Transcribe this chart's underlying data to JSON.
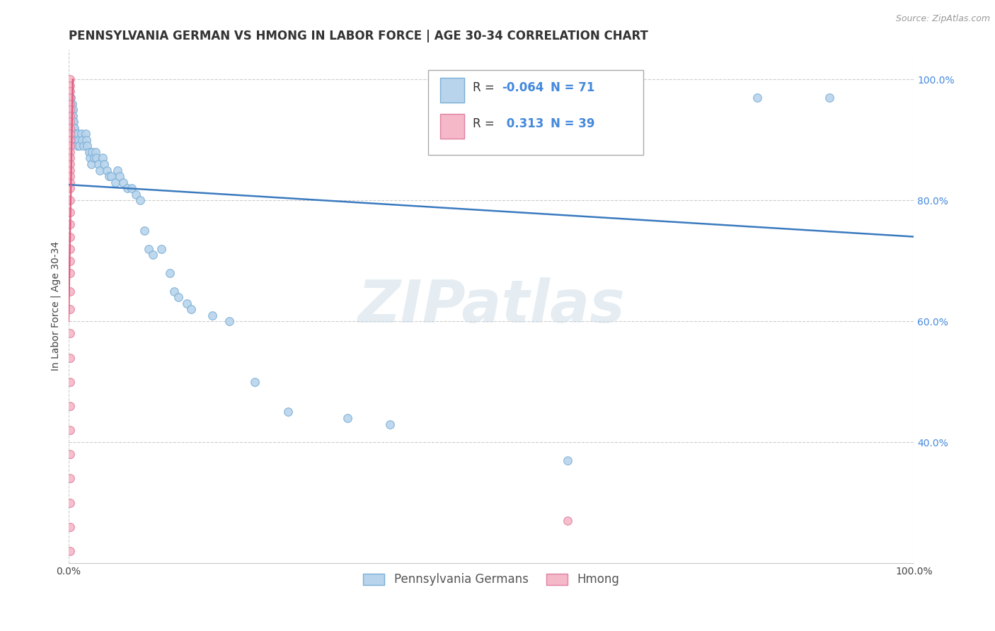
{
  "title": "PENNSYLVANIA GERMAN VS HMONG IN LABOR FORCE | AGE 30-34 CORRELATION CHART",
  "source": "Source: ZipAtlas.com",
  "ylabel": "In Labor Force | Age 30-34",
  "xlim": [
    0.0,
    1.0
  ],
  "ylim": [
    0.2,
    1.05
  ],
  "r_blue": -0.064,
  "n_blue": 71,
  "r_pink": 0.313,
  "n_pink": 39,
  "blue_color": "#b8d4ed",
  "blue_edge": "#7aaed4",
  "pink_color": "#f5b8c8",
  "pink_edge": "#e080a0",
  "line_color": "#3a7abf",
  "pink_line_color": "#e06080",
  "watermark": "ZIPatlas",
  "blue_scatter": [
    [
      0.001,
      0.97
    ],
    [
      0.001,
      0.96
    ],
    [
      0.002,
      0.97
    ],
    [
      0.002,
      0.96
    ],
    [
      0.002,
      0.95
    ],
    [
      0.003,
      0.97
    ],
    [
      0.003,
      0.96
    ],
    [
      0.003,
      0.95
    ],
    [
      0.003,
      0.94
    ],
    [
      0.004,
      0.96
    ],
    [
      0.004,
      0.95
    ],
    [
      0.004,
      0.94
    ],
    [
      0.004,
      0.93
    ],
    [
      0.005,
      0.95
    ],
    [
      0.005,
      0.94
    ],
    [
      0.005,
      0.93
    ],
    [
      0.006,
      0.93
    ],
    [
      0.006,
      0.92
    ],
    [
      0.007,
      0.92
    ],
    [
      0.008,
      0.91
    ],
    [
      0.009,
      0.9
    ],
    [
      0.01,
      0.89
    ],
    [
      0.011,
      0.91
    ],
    [
      0.012,
      0.9
    ],
    [
      0.013,
      0.89
    ],
    [
      0.015,
      0.91
    ],
    [
      0.016,
      0.9
    ],
    [
      0.018,
      0.89
    ],
    [
      0.02,
      0.91
    ],
    [
      0.021,
      0.9
    ],
    [
      0.022,
      0.89
    ],
    [
      0.024,
      0.88
    ],
    [
      0.025,
      0.87
    ],
    [
      0.027,
      0.86
    ],
    [
      0.028,
      0.88
    ],
    [
      0.03,
      0.87
    ],
    [
      0.032,
      0.88
    ],
    [
      0.033,
      0.87
    ],
    [
      0.035,
      0.86
    ],
    [
      0.037,
      0.85
    ],
    [
      0.04,
      0.87
    ],
    [
      0.042,
      0.86
    ],
    [
      0.045,
      0.85
    ],
    [
      0.048,
      0.84
    ],
    [
      0.05,
      0.84
    ],
    [
      0.055,
      0.83
    ],
    [
      0.058,
      0.85
    ],
    [
      0.06,
      0.84
    ],
    [
      0.065,
      0.83
    ],
    [
      0.07,
      0.82
    ],
    [
      0.075,
      0.82
    ],
    [
      0.08,
      0.81
    ],
    [
      0.085,
      0.8
    ],
    [
      0.09,
      0.75
    ],
    [
      0.095,
      0.72
    ],
    [
      0.1,
      0.71
    ],
    [
      0.11,
      0.72
    ],
    [
      0.12,
      0.68
    ],
    [
      0.125,
      0.65
    ],
    [
      0.13,
      0.64
    ],
    [
      0.14,
      0.63
    ],
    [
      0.145,
      0.62
    ],
    [
      0.17,
      0.61
    ],
    [
      0.19,
      0.6
    ],
    [
      0.22,
      0.5
    ],
    [
      0.26,
      0.45
    ],
    [
      0.33,
      0.44
    ],
    [
      0.38,
      0.43
    ],
    [
      0.59,
      0.37
    ],
    [
      0.815,
      0.97
    ],
    [
      0.9,
      0.97
    ]
  ],
  "pink_scatter": [
    [
      0.002,
      1.0
    ],
    [
      0.002,
      0.99
    ],
    [
      0.002,
      0.98
    ],
    [
      0.002,
      0.97
    ],
    [
      0.002,
      0.96
    ],
    [
      0.002,
      0.95
    ],
    [
      0.002,
      0.94
    ],
    [
      0.002,
      0.93
    ],
    [
      0.002,
      0.92
    ],
    [
      0.002,
      0.91
    ],
    [
      0.002,
      0.9
    ],
    [
      0.002,
      0.89
    ],
    [
      0.002,
      0.88
    ],
    [
      0.002,
      0.87
    ],
    [
      0.002,
      0.86
    ],
    [
      0.002,
      0.85
    ],
    [
      0.002,
      0.84
    ],
    [
      0.002,
      0.83
    ],
    [
      0.002,
      0.82
    ],
    [
      0.002,
      0.8
    ],
    [
      0.002,
      0.78
    ],
    [
      0.002,
      0.76
    ],
    [
      0.002,
      0.74
    ],
    [
      0.002,
      0.72
    ],
    [
      0.002,
      0.7
    ],
    [
      0.002,
      0.68
    ],
    [
      0.002,
      0.65
    ],
    [
      0.002,
      0.62
    ],
    [
      0.002,
      0.58
    ],
    [
      0.002,
      0.54
    ],
    [
      0.002,
      0.5
    ],
    [
      0.002,
      0.46
    ],
    [
      0.002,
      0.42
    ],
    [
      0.002,
      0.38
    ],
    [
      0.002,
      0.34
    ],
    [
      0.002,
      0.3
    ],
    [
      0.002,
      0.26
    ],
    [
      0.002,
      0.22
    ],
    [
      0.59,
      0.27
    ]
  ],
  "xtick_labels": [
    "0.0%",
    "",
    "",
    "",
    "",
    "",
    "",
    "",
    "",
    "",
    "100.0%"
  ],
  "xtick_vals": [
    0.0,
    0.1,
    0.2,
    0.3,
    0.4,
    0.5,
    0.6,
    0.7,
    0.8,
    0.9,
    1.0
  ],
  "ytick_labels": [
    "40.0%",
    "60.0%",
    "80.0%",
    "100.0%"
  ],
  "ytick_vals": [
    0.4,
    0.6,
    0.8,
    1.0
  ],
  "legend_labels": [
    "Pennsylvania Germans",
    "Hmong"
  ],
  "grid_color": "#cccccc",
  "bg_color": "#ffffff",
  "marker_size": 70,
  "title_fontsize": 12,
  "axis_label_fontsize": 10,
  "tick_fontsize": 10,
  "legend_fontsize": 12
}
